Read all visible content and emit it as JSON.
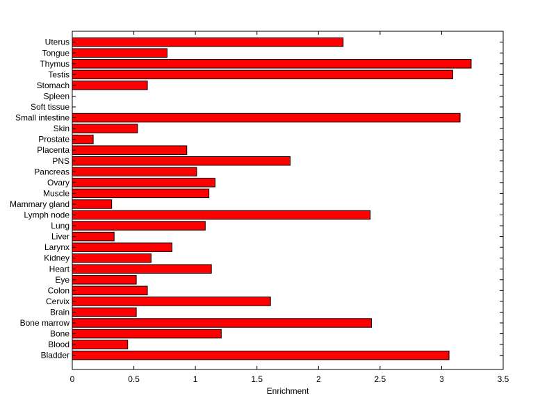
{
  "chart_data": {
    "type": "bar",
    "orientation": "horizontal",
    "title": "",
    "xlabel": "Enrichment",
    "ylabel": "",
    "xlim": [
      0,
      3.5
    ],
    "xticks": [
      0,
      0.5,
      1,
      1.5,
      2,
      2.5,
      3,
      3.5
    ],
    "xtick_labels": [
      "0",
      "0.5",
      "1",
      "1.5",
      "2",
      "2.5",
      "3",
      "3.5"
    ],
    "grid": false,
    "bar_color": "#ff0000",
    "categories": [
      "Uterus",
      "Tongue",
      "Thymus",
      "Testis",
      "Stomach",
      "Spleen",
      "Soft tissue",
      "Small intestine",
      "Skin",
      "Prostate",
      "Placenta",
      "PNS",
      "Pancreas",
      "Ovary",
      "Muscle",
      "Mammary gland",
      "Lymph node",
      "Lung",
      "Liver",
      "Larynx",
      "Kidney",
      "Heart",
      "Eye",
      "Colon",
      "Cervix",
      "Brain",
      "Bone marrow",
      "Bone",
      "Blood",
      "Bladder"
    ],
    "values": [
      2.2,
      0.77,
      3.24,
      3.09,
      0.61,
      0.0,
      0.0,
      3.15,
      0.53,
      0.17,
      0.93,
      1.77,
      1.01,
      1.16,
      1.11,
      0.32,
      2.42,
      1.08,
      0.34,
      0.81,
      0.64,
      1.13,
      0.52,
      0.61,
      1.61,
      0.52,
      2.43,
      1.21,
      0.45,
      3.06
    ]
  }
}
